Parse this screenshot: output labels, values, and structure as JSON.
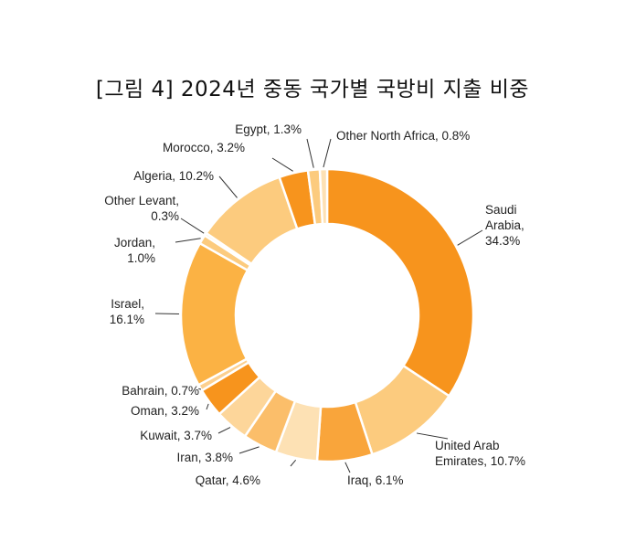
{
  "chart_data": {
    "type": "pie",
    "title": "[그림 4] 2024년 중동 국가별 국방비 지출 비중",
    "categories": [
      "Saudi Arabia",
      "United Arab Emirates",
      "Iraq",
      "Qatar",
      "Iran",
      "Kuwait",
      "Oman",
      "Bahrain",
      "Israel",
      "Jordan",
      "Other Levant",
      "Algeria",
      "Morocco",
      "Egypt",
      "Other North Africa"
    ],
    "values": [
      34.3,
      10.7,
      6.1,
      4.6,
      3.8,
      3.7,
      3.2,
      0.7,
      16.1,
      1.0,
      0.3,
      10.2,
      3.2,
      1.3,
      0.8
    ],
    "colors": [
      "#F7941D",
      "#FCCB7E",
      "#F9A53B",
      "#FDE1B4",
      "#FBBE6A",
      "#FDD69A",
      "#F7941D",
      "#FCD08F",
      "#FBB244",
      "#FCCB7E",
      "#FDE8C5",
      "#FCCB7E",
      "#F7941D",
      "#FCCB7E",
      "#FDE1B4"
    ],
    "labels": [
      [
        "Saudi",
        "Arabia,",
        "34.3%"
      ],
      [
        "United Arab",
        "Emirates, 10.7%"
      ],
      [
        "Iraq, 6.1%"
      ],
      [
        "Qatar, 4.6%"
      ],
      [
        "Iran, 3.8%"
      ],
      [
        "Kuwait, 3.7%"
      ],
      [
        "Oman, 3.2%"
      ],
      [
        "Bahrain, 0.7%"
      ],
      [
        "Israel,",
        "16.1%"
      ],
      [
        "Jordan,",
        "1.0%"
      ],
      [
        "Other Levant,",
        "0.3%"
      ],
      [
        "Algeria, 10.2%"
      ],
      [
        "Morocco, 3.2%"
      ],
      [
        "Egypt, 1.3%"
      ],
      [
        "Other North Africa, 0.8%"
      ]
    ],
    "legend": "none",
    "style": "donut"
  }
}
